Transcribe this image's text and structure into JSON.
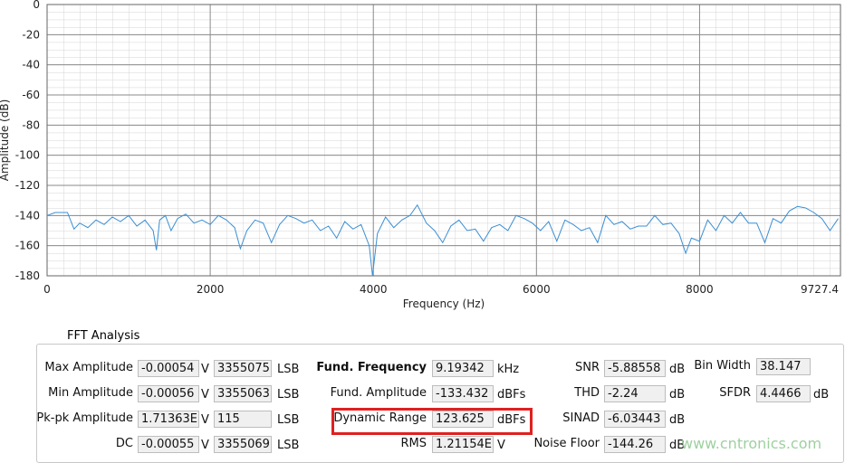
{
  "chart_data": {
    "type": "line",
    "x_label": "Frequency (Hz)",
    "y_label": "Amplitude (dB)",
    "x": [
      0,
      100,
      250,
      330,
      400,
      500,
      600,
      700,
      800,
      900,
      1000,
      1100,
      1200,
      1300,
      1340,
      1380,
      1450,
      1520,
      1600,
      1700,
      1800,
      1900,
      2000,
      2100,
      2200,
      2300,
      2370,
      2450,
      2550,
      2650,
      2750,
      2850,
      2950,
      3050,
      3150,
      3250,
      3350,
      3450,
      3550,
      3650,
      3750,
      3850,
      3950,
      3990,
      4050,
      4150,
      4250,
      4350,
      4450,
      4540,
      4650,
      4750,
      4850,
      4950,
      5050,
      5150,
      5250,
      5350,
      5450,
      5550,
      5650,
      5750,
      5850,
      5950,
      6050,
      6150,
      6250,
      6350,
      6450,
      6550,
      6650,
      6750,
      6850,
      6950,
      7050,
      7150,
      7250,
      7350,
      7450,
      7550,
      7650,
      7750,
      7830,
      7900,
      8000,
      8100,
      8200,
      8300,
      8400,
      8500,
      8600,
      8700,
      8800,
      8900,
      9000,
      9100,
      9200,
      9300,
      9400,
      9500,
      9600,
      9700
    ],
    "values": [
      -140,
      -138,
      -138,
      -149,
      -145,
      -148,
      -143,
      -146,
      -141,
      -144,
      -140,
      -147,
      -143,
      -150,
      -163,
      -143,
      -140,
      -150,
      -142,
      -139,
      -145,
      -143,
      -146,
      -140,
      -143,
      -148,
      -162,
      -150,
      -143,
      -145,
      -158,
      -146,
      -140,
      -142,
      -145,
      -143,
      -150,
      -147,
      -155,
      -144,
      -149,
      -146,
      -160,
      -180,
      -152,
      -141,
      -148,
      -143,
      -140,
      -133,
      -145,
      -150,
      -158,
      -147,
      -143,
      -150,
      -149,
      -157,
      -148,
      -146,
      -150,
      -140,
      -142,
      -145,
      -150,
      -144,
      -157,
      -143,
      -146,
      -150,
      -148,
      -158,
      -140,
      -146,
      -144,
      -149,
      -147,
      -147,
      -140,
      -146,
      -145,
      -152,
      -165,
      -155,
      -157,
      -143,
      -150,
      -140,
      -145,
      -138,
      -145,
      -145,
      -158,
      -142,
      -145,
      -137,
      -134,
      -135,
      -138,
      -142,
      -150,
      -142
    ],
    "color": "#3a8ed4",
    "xlim": [
      0,
      9727.4
    ],
    "xticks": [
      0,
      2000,
      4000,
      6000,
      8000,
      9727.4
    ],
    "ylim": [
      -180,
      0
    ],
    "yticks": [
      0,
      -20,
      -40,
      -60,
      -80,
      -100,
      -120,
      -140,
      -160,
      -180
    ],
    "grid": true
  },
  "fft_analysis": {
    "title": "FFT Analysis",
    "columns": [
      [
        {
          "label": "Max Amplitude",
          "value": "-0.00054",
          "unit": "V",
          "value2": "3355075",
          "unit2": "LSB"
        },
        {
          "label": "Min Amplitude",
          "value": "-0.00056",
          "unit": "V",
          "value2": "3355063",
          "unit2": "LSB"
        },
        {
          "label": "Pk-pk Amplitude",
          "value": "1.71363E",
          "unit": "V",
          "value2": "115",
          "unit2": "LSB"
        },
        {
          "label": "DC",
          "value": "-0.00055",
          "unit": "V",
          "value2": "3355069",
          "unit2": "LSB"
        }
      ],
      [
        {
          "label": "Fund. Frequency",
          "value": "9.19342",
          "unit": "kHz"
        },
        {
          "label": "Fund. Amplitude",
          "value": "-133.432",
          "unit": "dBFs"
        },
        {
          "label": "Dynamic Range",
          "value": "123.625",
          "unit": "dBFs"
        },
        {
          "label": "RMS",
          "value": "1.21154E",
          "unit": "V"
        }
      ],
      [
        {
          "label": "SNR",
          "value": "-5.88558",
          "unit": "dB"
        },
        {
          "label": "THD",
          "value": "-2.24",
          "unit": "dB"
        },
        {
          "label": "SINAD",
          "value": "-6.03443",
          "unit": "dB"
        },
        {
          "label": "Noise Floor",
          "value": "-144.26",
          "unit": "dB"
        }
      ],
      [
        {
          "label": "Bin Width",
          "value": "38.147"
        },
        {
          "label": "SFDR",
          "value": "4.4466",
          "unit": "dB"
        }
      ]
    ]
  },
  "watermark": "www.cntronics.com"
}
